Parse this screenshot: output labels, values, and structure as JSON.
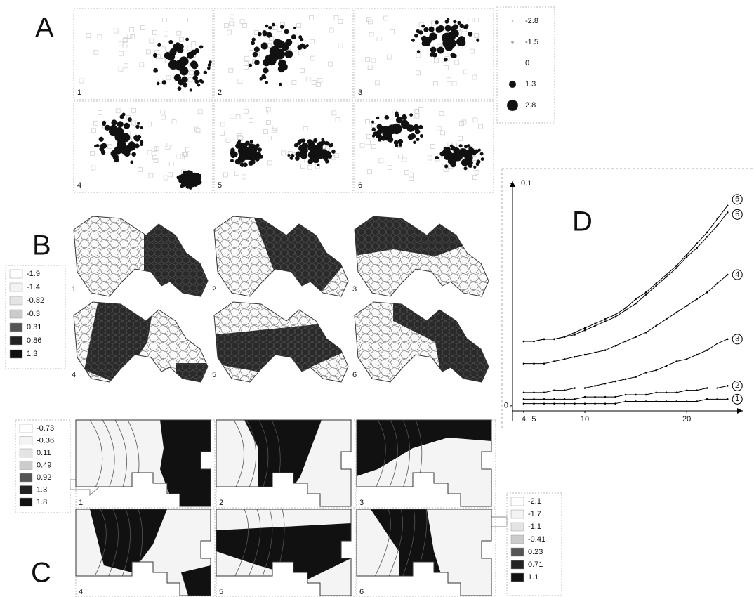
{
  "panels": {
    "A": {
      "letter": "A",
      "labels": [
        "1",
        "2",
        "3",
        "4",
        "5",
        "6"
      ],
      "legend": [
        "-2.8",
        "-1.5",
        "0",
        "1.3",
        "2.8"
      ]
    },
    "B": {
      "letter": "B",
      "labels": [
        "1",
        "2",
        "3",
        "4",
        "5",
        "6"
      ],
      "legend": [
        "-1.9",
        "-1.4",
        "-0.82",
        "-0.3",
        "0.31",
        "0.86",
        "1.3"
      ]
    },
    "C": {
      "letter": "C",
      "labels": [
        "1",
        "2",
        "3",
        "4",
        "5",
        "6"
      ],
      "legend_left": [
        "-0.73",
        "-0.36",
        "0.11",
        "0.49",
        "0.92",
        "1.3",
        "1.8"
      ],
      "legend_right": [
        "-2.1",
        "-1.7",
        "-1.1",
        "-0.41",
        "0.23",
        "0.71",
        "1.1"
      ]
    }
  },
  "chart_data": {
    "type": "line",
    "title": "D",
    "x": [
      4,
      5,
      6,
      7,
      8,
      9,
      10,
      11,
      12,
      13,
      14,
      15,
      16,
      17,
      18,
      19,
      20,
      21,
      22,
      23,
      24
    ],
    "xlim": [
      2.9,
      25.5
    ],
    "ylim": [
      -0.007,
      0.101
    ],
    "xticks": [
      4,
      5,
      10,
      20
    ],
    "yticks": [
      0,
      0.1
    ],
    "series": [
      {
        "name": "1",
        "color": "#000000",
        "values": [
          0.001,
          0.001,
          0.001,
          0.001,
          0.001,
          0.001,
          0.001,
          0.001,
          0.001,
          0.001,
          0.002,
          0.002,
          0.002,
          0.002,
          0.002,
          0.002,
          0.002,
          0.002,
          0.003,
          0.003,
          0.003
        ]
      },
      {
        "name": "2",
        "color": "#000000",
        "values": [
          0.003,
          0.003,
          0.003,
          0.003,
          0.003,
          0.003,
          0.004,
          0.004,
          0.004,
          0.004,
          0.005,
          0.005,
          0.005,
          0.006,
          0.006,
          0.006,
          0.007,
          0.007,
          0.008,
          0.008,
          0.009
        ]
      },
      {
        "name": "3",
        "color": "#000000",
        "values": [
          0.006,
          0.006,
          0.006,
          0.007,
          0.007,
          0.008,
          0.008,
          0.009,
          0.01,
          0.011,
          0.012,
          0.013,
          0.015,
          0.016,
          0.018,
          0.02,
          0.021,
          0.023,
          0.025,
          0.028,
          0.03
        ]
      },
      {
        "name": "4",
        "color": "#000000",
        "values": [
          0.019,
          0.019,
          0.019,
          0.02,
          0.021,
          0.022,
          0.023,
          0.024,
          0.025,
          0.027,
          0.029,
          0.031,
          0.033,
          0.036,
          0.039,
          0.042,
          0.045,
          0.048,
          0.051,
          0.055,
          0.059
        ]
      },
      {
        "name": "5",
        "color": "#000000",
        "values": [
          0.029,
          0.029,
          0.03,
          0.03,
          0.031,
          0.033,
          0.035,
          0.037,
          0.039,
          0.041,
          0.044,
          0.048,
          0.051,
          0.055,
          0.059,
          0.063,
          0.068,
          0.073,
          0.078,
          0.084,
          0.09
        ]
      },
      {
        "name": "6",
        "color": "#000000",
        "values": [
          0.029,
          0.029,
          0.03,
          0.03,
          0.031,
          0.032,
          0.034,
          0.036,
          0.038,
          0.04,
          0.043,
          0.046,
          0.05,
          0.054,
          0.058,
          0.062,
          0.067,
          0.071,
          0.076,
          0.081,
          0.087
        ]
      }
    ]
  }
}
